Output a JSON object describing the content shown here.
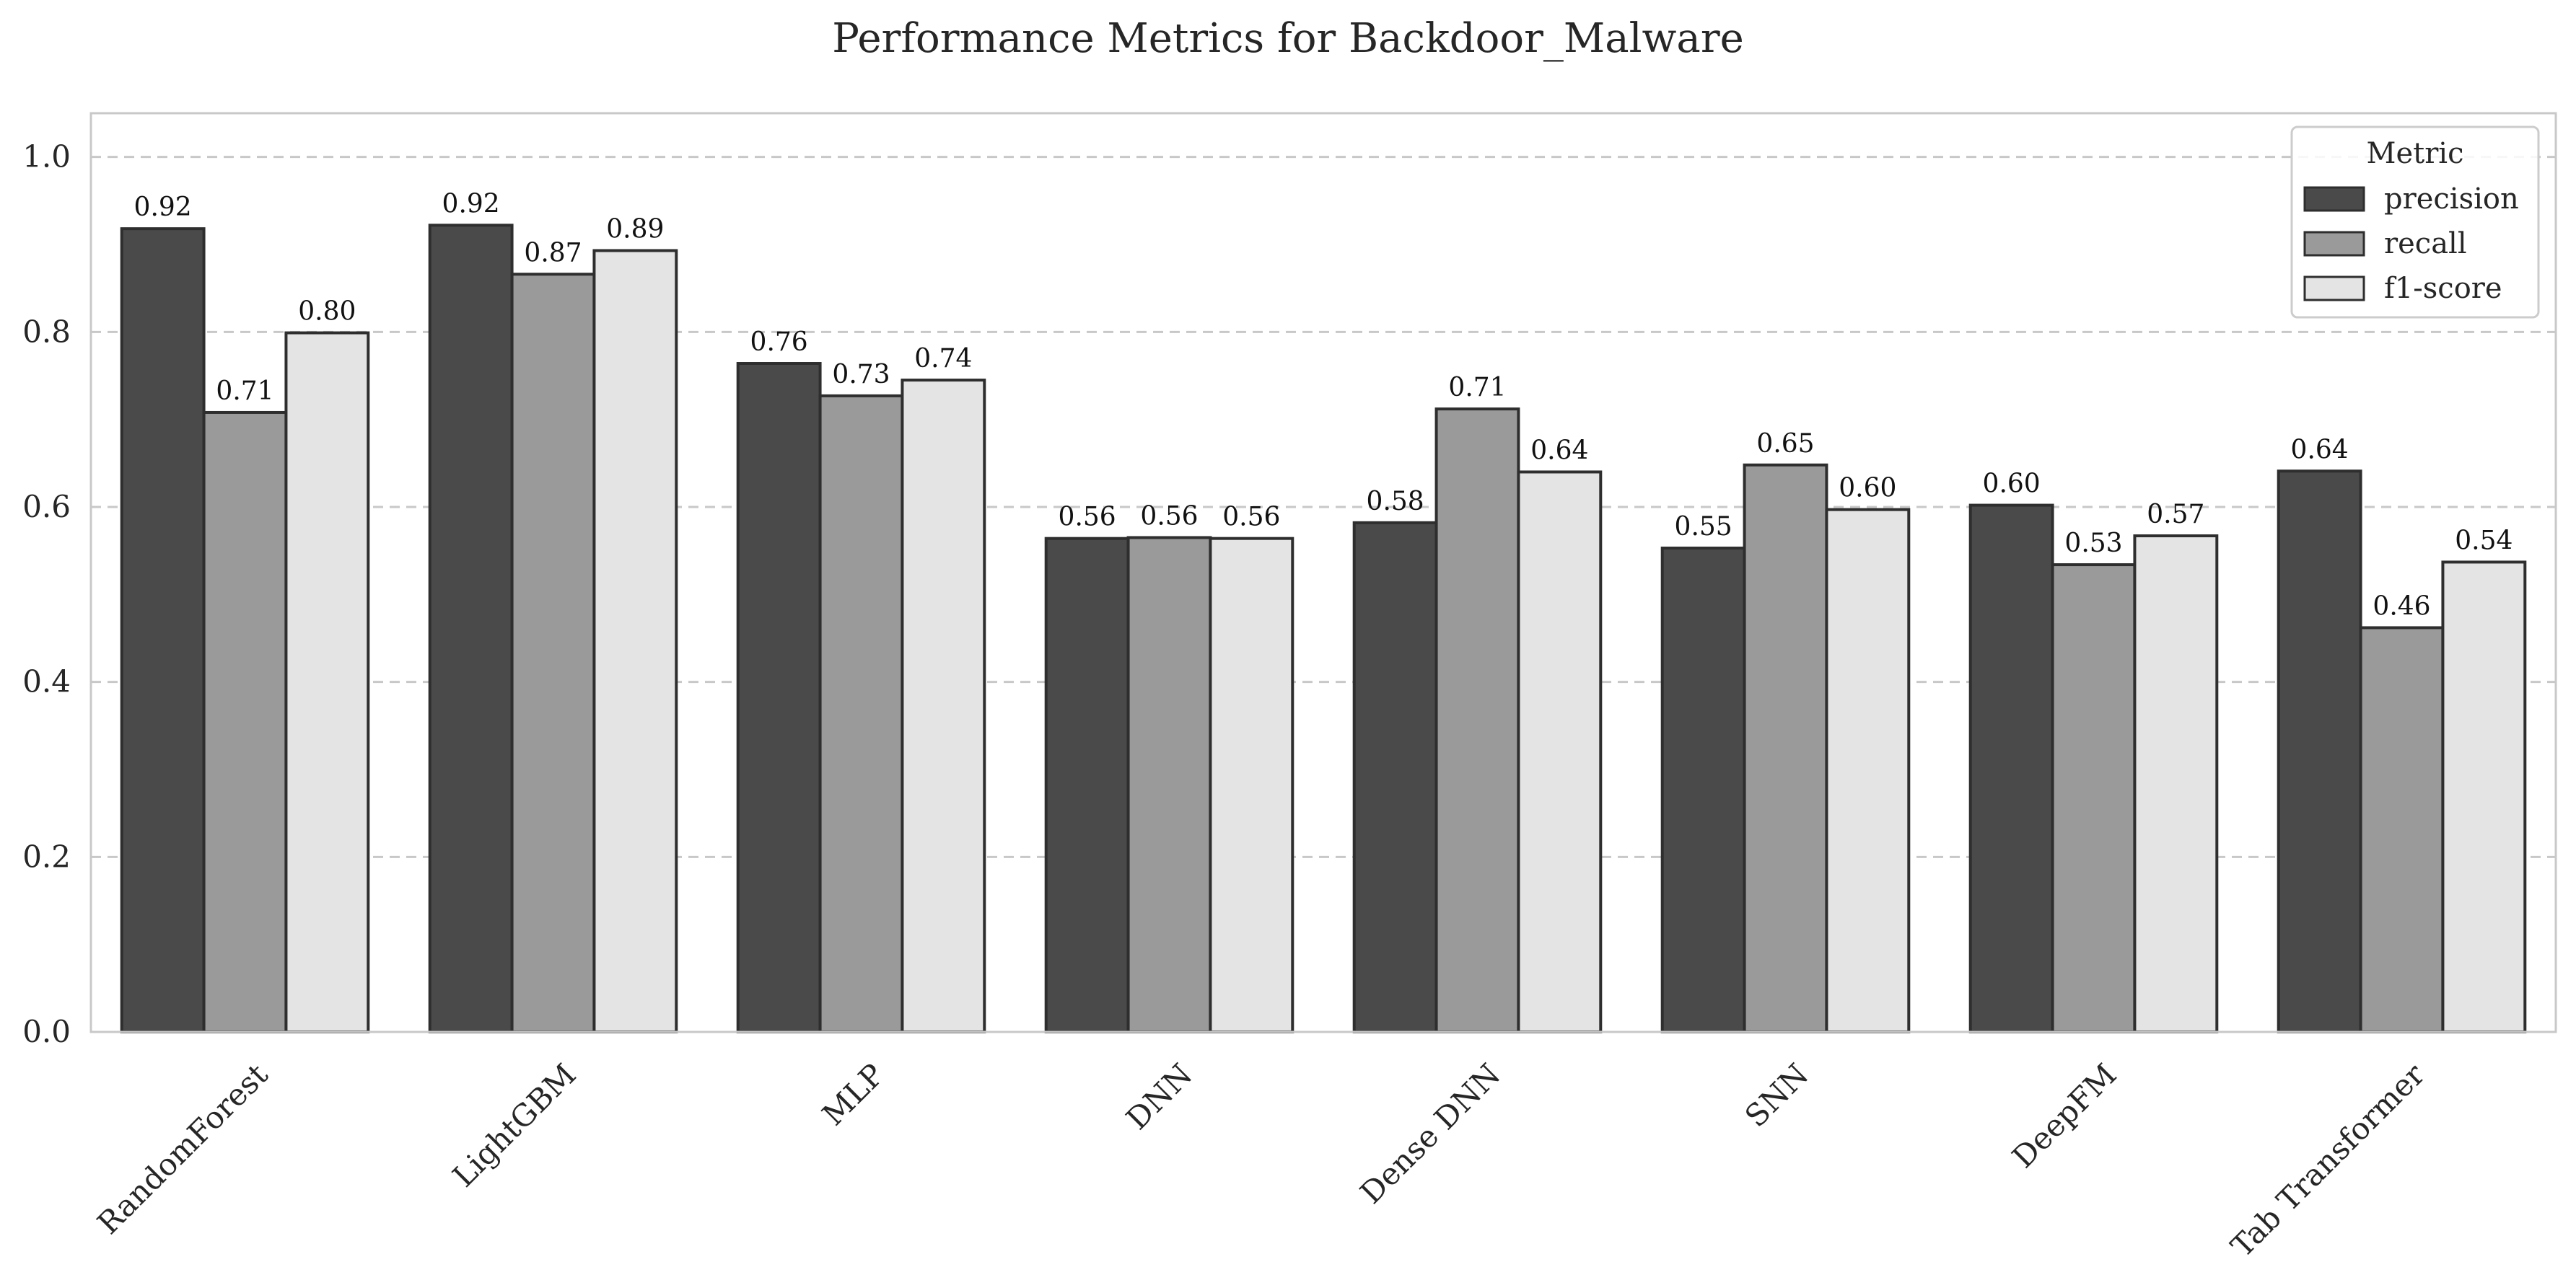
{
  "chart_data": {
    "type": "bar",
    "title": "Performance Metrics for Backdoor_Malware",
    "xlabel": "",
    "ylabel": "",
    "ylim": [
      0,
      1.05
    ],
    "yticks": [
      0.0,
      0.2,
      0.4,
      0.6,
      0.8,
      1.0
    ],
    "ytick_labels": [
      "0.0",
      "0.2",
      "0.4",
      "0.6",
      "0.8",
      "1.0"
    ],
    "grid": true,
    "categories": [
      "RandomForest",
      "LightGBM",
      "MLP",
      "DNN",
      "Dense DNN",
      "SNN",
      "DeepFM",
      "Tab Transformer"
    ],
    "legend": {
      "title": "Metric",
      "placement": "top-right"
    },
    "series": [
      {
        "name": "precision",
        "color": "#4a4a4a",
        "values": [
          0.918,
          0.922,
          0.764,
          0.564,
          0.582,
          0.553,
          0.602,
          0.641
        ],
        "labels": [
          "0.92",
          "0.92",
          "0.76",
          "0.56",
          "0.58",
          "0.55",
          "0.60",
          "0.64"
        ]
      },
      {
        "name": "recall",
        "color": "#9a9a9a",
        "values": [
          0.708,
          0.866,
          0.727,
          0.565,
          0.712,
          0.648,
          0.534,
          0.462
        ],
        "labels": [
          "0.71",
          "0.87",
          "0.73",
          "0.56",
          "0.71",
          "0.65",
          "0.53",
          "0.46"
        ]
      },
      {
        "name": "f1-score",
        "color": "#e4e4e4",
        "values": [
          0.799,
          0.893,
          0.745,
          0.564,
          0.64,
          0.597,
          0.567,
          0.537
        ],
        "labels": [
          "0.80",
          "0.89",
          "0.74",
          "0.56",
          "0.64",
          "0.60",
          "0.57",
          "0.54"
        ]
      }
    ]
  }
}
